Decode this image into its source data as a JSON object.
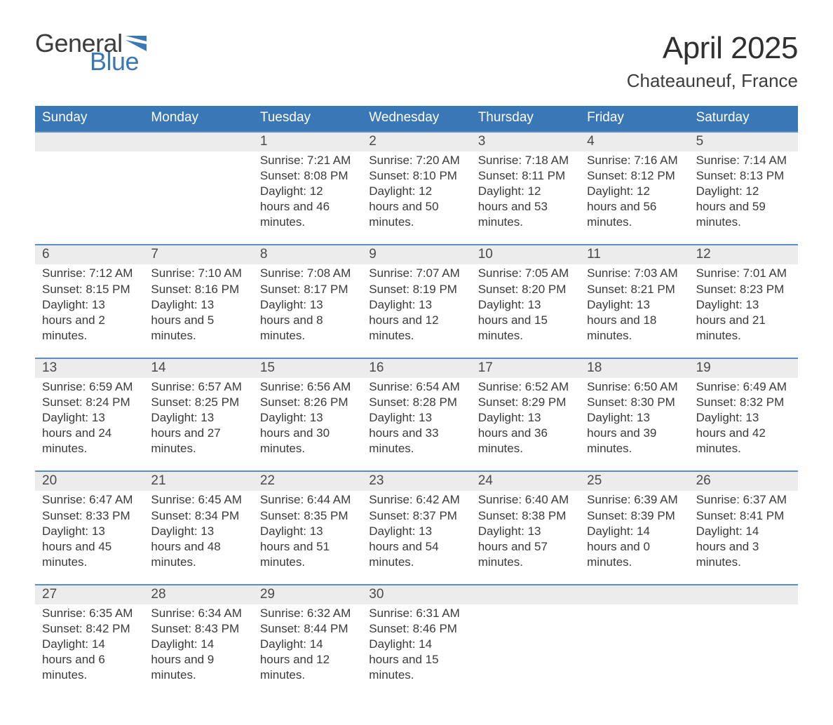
{
  "logo": {
    "word1": "General",
    "word2": "Blue"
  },
  "title": "April 2025",
  "location": "Chateauneuf, France",
  "colors": {
    "brand_blue": "#3a77b7",
    "header_bg": "#3a77b7",
    "daynum_bg": "#ececec",
    "divider": "#5b8ec2",
    "text": "#3c3c3c",
    "white": "#ffffff"
  },
  "days_of_week": [
    "Sunday",
    "Monday",
    "Tuesday",
    "Wednesday",
    "Thursday",
    "Friday",
    "Saturday"
  ],
  "weeks": [
    [
      {
        "n": "",
        "sunrise": "",
        "sunset": "",
        "daylight": ""
      },
      {
        "n": "",
        "sunrise": "",
        "sunset": "",
        "daylight": ""
      },
      {
        "n": "1",
        "sunrise": "Sunrise: 7:21 AM",
        "sunset": "Sunset: 8:08 PM",
        "daylight": "Daylight: 12 hours and 46 minutes."
      },
      {
        "n": "2",
        "sunrise": "Sunrise: 7:20 AM",
        "sunset": "Sunset: 8:10 PM",
        "daylight": "Daylight: 12 hours and 50 minutes."
      },
      {
        "n": "3",
        "sunrise": "Sunrise: 7:18 AM",
        "sunset": "Sunset: 8:11 PM",
        "daylight": "Daylight: 12 hours and 53 minutes."
      },
      {
        "n": "4",
        "sunrise": "Sunrise: 7:16 AM",
        "sunset": "Sunset: 8:12 PM",
        "daylight": "Daylight: 12 hours and 56 minutes."
      },
      {
        "n": "5",
        "sunrise": "Sunrise: 7:14 AM",
        "sunset": "Sunset: 8:13 PM",
        "daylight": "Daylight: 12 hours and 59 minutes."
      }
    ],
    [
      {
        "n": "6",
        "sunrise": "Sunrise: 7:12 AM",
        "sunset": "Sunset: 8:15 PM",
        "daylight": "Daylight: 13 hours and 2 minutes."
      },
      {
        "n": "7",
        "sunrise": "Sunrise: 7:10 AM",
        "sunset": "Sunset: 8:16 PM",
        "daylight": "Daylight: 13 hours and 5 minutes."
      },
      {
        "n": "8",
        "sunrise": "Sunrise: 7:08 AM",
        "sunset": "Sunset: 8:17 PM",
        "daylight": "Daylight: 13 hours and 8 minutes."
      },
      {
        "n": "9",
        "sunrise": "Sunrise: 7:07 AM",
        "sunset": "Sunset: 8:19 PM",
        "daylight": "Daylight: 13 hours and 12 minutes."
      },
      {
        "n": "10",
        "sunrise": "Sunrise: 7:05 AM",
        "sunset": "Sunset: 8:20 PM",
        "daylight": "Daylight: 13 hours and 15 minutes."
      },
      {
        "n": "11",
        "sunrise": "Sunrise: 7:03 AM",
        "sunset": "Sunset: 8:21 PM",
        "daylight": "Daylight: 13 hours and 18 minutes."
      },
      {
        "n": "12",
        "sunrise": "Sunrise: 7:01 AM",
        "sunset": "Sunset: 8:23 PM",
        "daylight": "Daylight: 13 hours and 21 minutes."
      }
    ],
    [
      {
        "n": "13",
        "sunrise": "Sunrise: 6:59 AM",
        "sunset": "Sunset: 8:24 PM",
        "daylight": "Daylight: 13 hours and 24 minutes."
      },
      {
        "n": "14",
        "sunrise": "Sunrise: 6:57 AM",
        "sunset": "Sunset: 8:25 PM",
        "daylight": "Daylight: 13 hours and 27 minutes."
      },
      {
        "n": "15",
        "sunrise": "Sunrise: 6:56 AM",
        "sunset": "Sunset: 8:26 PM",
        "daylight": "Daylight: 13 hours and 30 minutes."
      },
      {
        "n": "16",
        "sunrise": "Sunrise: 6:54 AM",
        "sunset": "Sunset: 8:28 PM",
        "daylight": "Daylight: 13 hours and 33 minutes."
      },
      {
        "n": "17",
        "sunrise": "Sunrise: 6:52 AM",
        "sunset": "Sunset: 8:29 PM",
        "daylight": "Daylight: 13 hours and 36 minutes."
      },
      {
        "n": "18",
        "sunrise": "Sunrise: 6:50 AM",
        "sunset": "Sunset: 8:30 PM",
        "daylight": "Daylight: 13 hours and 39 minutes."
      },
      {
        "n": "19",
        "sunrise": "Sunrise: 6:49 AM",
        "sunset": "Sunset: 8:32 PM",
        "daylight": "Daylight: 13 hours and 42 minutes."
      }
    ],
    [
      {
        "n": "20",
        "sunrise": "Sunrise: 6:47 AM",
        "sunset": "Sunset: 8:33 PM",
        "daylight": "Daylight: 13 hours and 45 minutes."
      },
      {
        "n": "21",
        "sunrise": "Sunrise: 6:45 AM",
        "sunset": "Sunset: 8:34 PM",
        "daylight": "Daylight: 13 hours and 48 minutes."
      },
      {
        "n": "22",
        "sunrise": "Sunrise: 6:44 AM",
        "sunset": "Sunset: 8:35 PM",
        "daylight": "Daylight: 13 hours and 51 minutes."
      },
      {
        "n": "23",
        "sunrise": "Sunrise: 6:42 AM",
        "sunset": "Sunset: 8:37 PM",
        "daylight": "Daylight: 13 hours and 54 minutes."
      },
      {
        "n": "24",
        "sunrise": "Sunrise: 6:40 AM",
        "sunset": "Sunset: 8:38 PM",
        "daylight": "Daylight: 13 hours and 57 minutes."
      },
      {
        "n": "25",
        "sunrise": "Sunrise: 6:39 AM",
        "sunset": "Sunset: 8:39 PM",
        "daylight": "Daylight: 14 hours and 0 minutes."
      },
      {
        "n": "26",
        "sunrise": "Sunrise: 6:37 AM",
        "sunset": "Sunset: 8:41 PM",
        "daylight": "Daylight: 14 hours and 3 minutes."
      }
    ],
    [
      {
        "n": "27",
        "sunrise": "Sunrise: 6:35 AM",
        "sunset": "Sunset: 8:42 PM",
        "daylight": "Daylight: 14 hours and 6 minutes."
      },
      {
        "n": "28",
        "sunrise": "Sunrise: 6:34 AM",
        "sunset": "Sunset: 8:43 PM",
        "daylight": "Daylight: 14 hours and 9 minutes."
      },
      {
        "n": "29",
        "sunrise": "Sunrise: 6:32 AM",
        "sunset": "Sunset: 8:44 PM",
        "daylight": "Daylight: 14 hours and 12 minutes."
      },
      {
        "n": "30",
        "sunrise": "Sunrise: 6:31 AM",
        "sunset": "Sunset: 8:46 PM",
        "daylight": "Daylight: 14 hours and 15 minutes."
      },
      {
        "n": "",
        "sunrise": "",
        "sunset": "",
        "daylight": ""
      },
      {
        "n": "",
        "sunrise": "",
        "sunset": "",
        "daylight": ""
      },
      {
        "n": "",
        "sunrise": "",
        "sunset": "",
        "daylight": ""
      }
    ]
  ]
}
